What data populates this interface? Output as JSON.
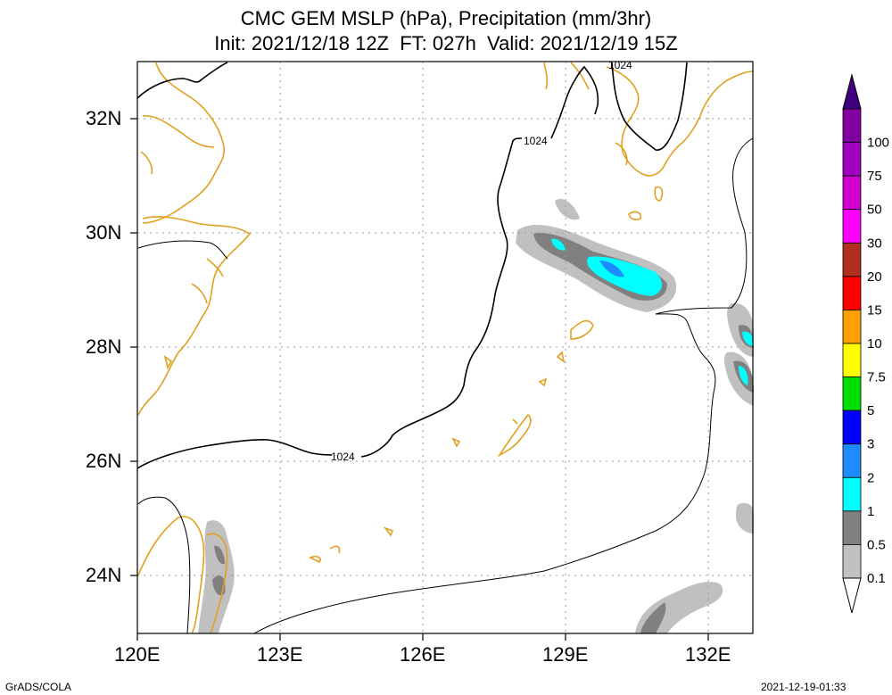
{
  "title": {
    "line1": "CMC GEM MSLP (hPa), Precipitation (mm/3hr)",
    "line2": "Init: 2021/12/18 12Z  FT: 027h  Valid: 2021/12/19 15Z"
  },
  "axes": {
    "x_ticks": [
      "120E",
      "123E",
      "126E",
      "129E",
      "132E"
    ],
    "y_ticks": [
      "32N",
      "30N",
      "28N",
      "26N",
      "24N"
    ]
  },
  "contour_label": "1024",
  "colorbar": {
    "labels": [
      "100",
      "75",
      "50",
      "30",
      "20",
      "15",
      "10",
      "7.5",
      "5",
      "3",
      "2",
      "1",
      "0.5",
      "0.1"
    ],
    "colors": [
      "#8000a0",
      "#a000c0",
      "#d000d0",
      "#ff00ff",
      "#b03020",
      "#ff0000",
      "#ffa000",
      "#ffff00",
      "#00e000",
      "#0000ff",
      "#1e8cff",
      "#00ffff",
      "#808080",
      "#c0c0c0"
    ]
  },
  "footer": {
    "left": "GrADS/COLA",
    "right": "2021-12-19-01:33"
  }
}
